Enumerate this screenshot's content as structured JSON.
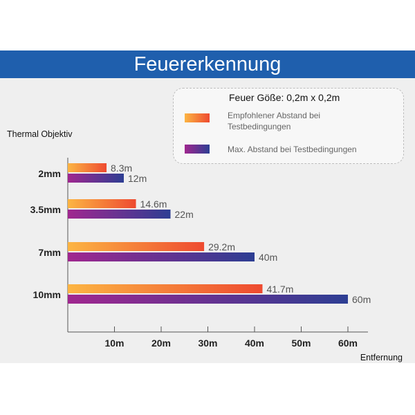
{
  "banner": {
    "title": "Feuererkennung"
  },
  "legend": {
    "title": "Feuer Göße: 0,2m x 0,2m",
    "items": [
      {
        "label": "Empfohlener Abstand bei Testbedingungen"
      },
      {
        "label": "Max. Abstand bei Testbedingungen"
      }
    ]
  },
  "colors": {
    "recommended": [
      "#fcb543",
      "#ee4a30"
    ],
    "max": [
      "#a0278f",
      "#2d3e93"
    ],
    "banner": "#1f5fad"
  },
  "chart_data": {
    "type": "bar",
    "orientation": "horizontal",
    "title": "Feuererkennung",
    "ylabel": "Thermal Objektiv",
    "xlabel": "Entfernung",
    "categories": [
      "2mm",
      "3.5mm",
      "7mm",
      "10mm"
    ],
    "series": [
      {
        "name": "Empfohlener Abstand bei Testbedingungen",
        "values": [
          8.3,
          14.6,
          29.2,
          41.7
        ],
        "labels": [
          "8.3m",
          "14.6m",
          "29.2m",
          "41.7m"
        ]
      },
      {
        "name": "Max. Abstand bei Testbedingungen",
        "values": [
          12,
          22,
          40,
          60
        ],
        "labels": [
          "12m",
          "22m",
          "40m",
          "60m"
        ]
      }
    ],
    "xticks": [
      10,
      20,
      30,
      40,
      50,
      60
    ],
    "xtick_labels": [
      "10m",
      "20m",
      "30m",
      "40m",
      "50m",
      "60m"
    ],
    "xlim": [
      0,
      67
    ],
    "grid": false,
    "legend_position": "top-right"
  }
}
